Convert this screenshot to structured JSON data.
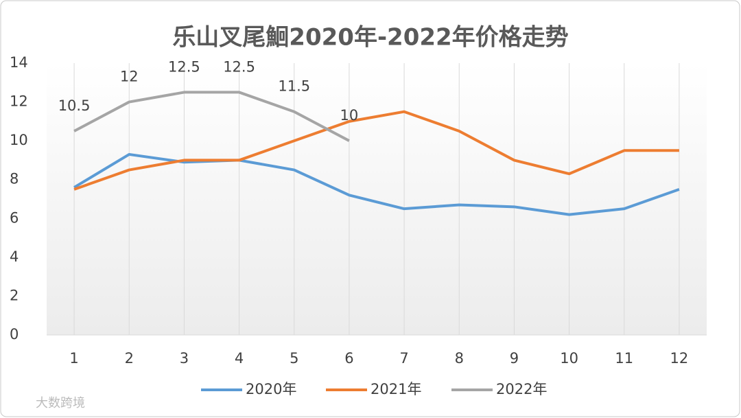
{
  "chart_data": {
    "type": "line",
    "title": "乐山叉尾鮰2020年-2022年价格走势",
    "categories": [
      "1",
      "2",
      "3",
      "4",
      "5",
      "6",
      "7",
      "8",
      "9",
      "10",
      "11",
      "12"
    ],
    "series": [
      {
        "name": "2020年",
        "color": "#5b9bd5",
        "values": [
          7.6,
          9.3,
          8.9,
          9.0,
          8.5,
          7.2,
          6.5,
          6.7,
          6.6,
          6.2,
          6.5,
          7.5
        ]
      },
      {
        "name": "2021年",
        "color": "#ed7d31",
        "values": [
          7.5,
          8.5,
          9.0,
          9.0,
          10.0,
          11.0,
          11.5,
          10.5,
          9.0,
          8.3,
          9.5,
          9.5
        ]
      },
      {
        "name": "2022年",
        "color": "#a5a5a5",
        "values": [
          10.5,
          12,
          12.5,
          12.5,
          11.5,
          10,
          null,
          null,
          null,
          null,
          null,
          null
        ],
        "data_labels": true
      }
    ],
    "ylim": [
      0,
      14
    ],
    "yticks": [
      0,
      2,
      4,
      6,
      8,
      10,
      12,
      14
    ],
    "grid": "vertical",
    "legend": "bottom"
  },
  "watermark": "大数跨境"
}
